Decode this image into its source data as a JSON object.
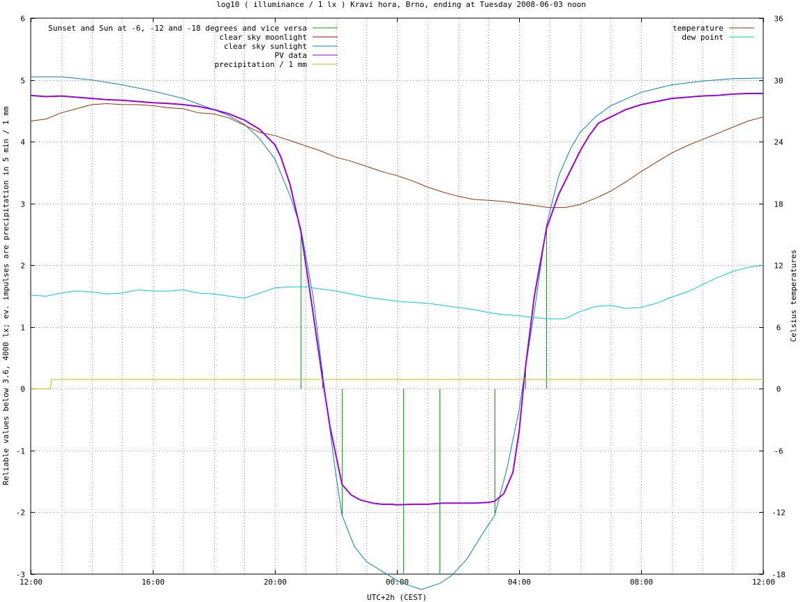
{
  "chart_data": {
    "type": "line",
    "title": "log10 ( illuminance / 1 lx ) Kravi hora, Brno, ending at Tuesday 2008-06-03 noon",
    "xlabel": "UTC+2h (CEST)",
    "ylabel": "Reliable values below 3.6, 4000 lx; ev. impulses are precipitation in 5 min / 1 mm",
    "y2label": "Celsius temperatures",
    "xlim": [
      0,
      24
    ],
    "ylim": [
      -3,
      6
    ],
    "y2lim": [
      -18,
      36
    ],
    "x_ticks": [
      {
        "value": 0,
        "label": "12:00"
      },
      {
        "value": 4,
        "label": "16:00"
      },
      {
        "value": 8,
        "label": "20:00"
      },
      {
        "value": 12,
        "label": "00:00"
      },
      {
        "value": 16,
        "label": "04:00"
      },
      {
        "value": 20,
        "label": "08:00"
      },
      {
        "value": 24,
        "label": "12:00"
      }
    ],
    "x_grid_step": 1,
    "y_ticks": [
      {
        "value": -3,
        "label": "-3"
      },
      {
        "value": -2,
        "label": "-2"
      },
      {
        "value": -1,
        "label": "-1"
      },
      {
        "value": 0,
        "label": "0"
      },
      {
        "value": 1,
        "label": "1"
      },
      {
        "value": 2,
        "label": "2"
      },
      {
        "value": 3,
        "label": "3"
      },
      {
        "value": 4,
        "label": "4"
      },
      {
        "value": 5,
        "label": "5"
      },
      {
        "value": 6,
        "label": "6"
      }
    ],
    "y2_ticks": [
      {
        "value": -18,
        "label": "-18"
      },
      {
        "value": -12,
        "label": "-12"
      },
      {
        "value": -6,
        "label": "-6"
      },
      {
        "value": 0,
        "label": "0"
      },
      {
        "value": 6,
        "label": "6"
      },
      {
        "value": 12,
        "label": "12"
      },
      {
        "value": 18,
        "label": "18"
      },
      {
        "value": 24,
        "label": "24"
      },
      {
        "value": 30,
        "label": "30"
      },
      {
        "value": 36,
        "label": "36"
      }
    ],
    "grid": true,
    "legend_left": [
      {
        "name": "Sunset and Sun at -6, -12 and -18 degrees and vice versa",
        "color": "#00b000"
      },
      {
        "name": "clear sky moonlight",
        "color": "#c00000"
      },
      {
        "name": "clear sky sunlight",
        "color": "#0080c0"
      },
      {
        "name": "PV data",
        "color": "#a000e0"
      },
      {
        "name": "precipitation / 1 mm",
        "color": "#e0b000"
      }
    ],
    "legend_right": [
      {
        "name": "temperature",
        "color": "#a03000"
      },
      {
        "name": "dew point",
        "color": "#00d0d0"
      }
    ],
    "series": [
      {
        "name": "Sunset and Sun at -6, -12 and -18 degrees and vice versa",
        "color": "#00b000",
        "kind": "impulses",
        "axis": "y",
        "x": [
          8.85,
          9.55,
          10.2,
          12.2,
          13.4,
          15.2,
          16.2,
          16.9
        ],
        "values": [
          2.6,
          0.3,
          -2.05,
          -3,
          -3,
          -2.05,
          0.3,
          2.65
        ]
      },
      {
        "name": "clear sky sunlight",
        "color": "#0080c0",
        "kind": "line",
        "axis": "y",
        "x": [
          0,
          1,
          2,
          3,
          4,
          5,
          6,
          6.5,
          7,
          7.5,
          8,
          8.5,
          8.85,
          9.25,
          9.55,
          10,
          10.2,
          10.6,
          11,
          11.5,
          12,
          12.2,
          12.8,
          13.4,
          13.8,
          14.3,
          14.8,
          15.2,
          15.6,
          16,
          16.2,
          16.5,
          16.9,
          17.3,
          17.7,
          18,
          18.5,
          19,
          20,
          21,
          22,
          23,
          24
        ],
        "values": [
          5.05,
          5.05,
          5.0,
          4.92,
          4.82,
          4.7,
          4.52,
          4.42,
          4.28,
          4.05,
          3.72,
          3.12,
          2.6,
          1.5,
          0.3,
          -1.4,
          -2.05,
          -2.55,
          -2.8,
          -2.95,
          -3.1,
          -3.15,
          -3.25,
          -3.15,
          -3.02,
          -2.75,
          -2.35,
          -2.05,
          -1.3,
          -0.35,
          0.3,
          1.25,
          2.65,
          3.45,
          3.9,
          4.15,
          4.4,
          4.58,
          4.8,
          4.92,
          4.98,
          5.02,
          5.03
        ]
      },
      {
        "name": "PV data",
        "color": "#a000e0",
        "kind": "line",
        "axis": "y",
        "x": [
          0,
          0.5,
          1,
          1.5,
          2,
          2.5,
          3,
          3.5,
          4,
          4.5,
          5,
          5.5,
          6,
          6.5,
          7,
          7.5,
          8,
          8.2,
          8.5,
          8.85,
          9.2,
          9.55,
          9.8,
          10.2,
          10.5,
          10.8,
          11.2,
          11.5,
          11.8,
          12,
          12.5,
          13,
          13.5,
          14,
          14.5,
          15,
          15.2,
          15.5,
          15.8,
          16,
          16.2,
          16.5,
          16.9,
          17.3,
          17.7,
          18,
          18.3,
          18.6,
          19,
          19.5,
          20,
          20.5,
          21,
          21.5,
          22,
          22.5,
          23,
          23.5,
          24
        ],
        "values": [
          4.75,
          4.73,
          4.74,
          4.72,
          4.7,
          4.68,
          4.67,
          4.65,
          4.63,
          4.62,
          4.6,
          4.57,
          4.52,
          4.45,
          4.35,
          4.2,
          3.95,
          3.75,
          3.3,
          2.55,
          1.4,
          0.2,
          -0.6,
          -1.55,
          -1.72,
          -1.8,
          -1.85,
          -1.87,
          -1.87,
          -1.88,
          -1.87,
          -1.87,
          -1.85,
          -1.85,
          -1.85,
          -1.84,
          -1.82,
          -1.7,
          -1.35,
          -0.7,
          0.3,
          1.5,
          2.6,
          3.15,
          3.55,
          3.85,
          4.1,
          4.3,
          4.4,
          4.52,
          4.6,
          4.65,
          4.7,
          4.72,
          4.74,
          4.75,
          4.77,
          4.78,
          4.78
        ]
      },
      {
        "name": "precipitation / 1 mm",
        "color": "#e0b000",
        "kind": "line",
        "axis": "y",
        "x": [
          0,
          0.65,
          0.68,
          24
        ],
        "values": [
          0,
          0,
          0.15,
          0.15
        ]
      },
      {
        "name": "temperature",
        "color": "#a03000",
        "kind": "line",
        "axis": "y2",
        "x": [
          0,
          0.5,
          1,
          1.5,
          2,
          2.5,
          3,
          3.5,
          4,
          4.5,
          5,
          5.5,
          6,
          6.5,
          7,
          7.5,
          8,
          8.5,
          9,
          9.5,
          10,
          10.5,
          11,
          11.5,
          12,
          12.5,
          13,
          13.5,
          14,
          14.5,
          15,
          15.5,
          16,
          16.5,
          17,
          17.5,
          18,
          18.5,
          19,
          19.5,
          20,
          20.5,
          21,
          21.5,
          22,
          22.5,
          23,
          23.5,
          24
        ],
        "values": [
          26,
          26.2,
          26.8,
          27.2,
          27.6,
          27.7,
          27.6,
          27.6,
          27.5,
          27.3,
          27.2,
          26.8,
          26.7,
          26.3,
          25.6,
          24.9,
          24.6,
          24.1,
          23.6,
          23.1,
          22.5,
          22.1,
          21.6,
          21.1,
          20.7,
          20.2,
          19.6,
          19.1,
          18.7,
          18.4,
          18.3,
          18.2,
          18.0,
          17.8,
          17.6,
          17.6,
          17.9,
          18.5,
          19.2,
          20.1,
          21.1,
          22.0,
          22.9,
          23.6,
          24.2,
          24.8,
          25.4,
          26.0,
          26.4
        ]
      },
      {
        "name": "dew point",
        "color": "#00d0d0",
        "kind": "line",
        "axis": "y2",
        "x": [
          0,
          0.5,
          1,
          1.5,
          2,
          2.5,
          3,
          3.5,
          4,
          4.5,
          5,
          5.5,
          6,
          6.5,
          7,
          7.5,
          8,
          8.5,
          9,
          9.5,
          10,
          10.5,
          11,
          11.5,
          12,
          12.5,
          13,
          13.5,
          14,
          14.5,
          15,
          15.5,
          16,
          16.5,
          17,
          17.5,
          18,
          18.5,
          19,
          19.5,
          20,
          20.5,
          21,
          21.5,
          22,
          22.5,
          23,
          23.5,
          24
        ],
        "values": [
          9.1,
          9.0,
          9.3,
          9.5,
          9.4,
          9.2,
          9.3,
          9.6,
          9.5,
          9.5,
          9.6,
          9.3,
          9.2,
          9.0,
          8.8,
          9.3,
          9.8,
          9.9,
          9.9,
          9.7,
          9.5,
          9.2,
          8.9,
          8.7,
          8.5,
          8.4,
          8.3,
          8.1,
          7.9,
          7.7,
          7.4,
          7.2,
          7.1,
          6.9,
          6.8,
          6.8,
          7.5,
          8.0,
          8.1,
          7.8,
          7.9,
          8.3,
          8.9,
          9.4,
          10.1,
          10.8,
          11.4,
          11.8,
          12.0
        ]
      }
    ]
  }
}
